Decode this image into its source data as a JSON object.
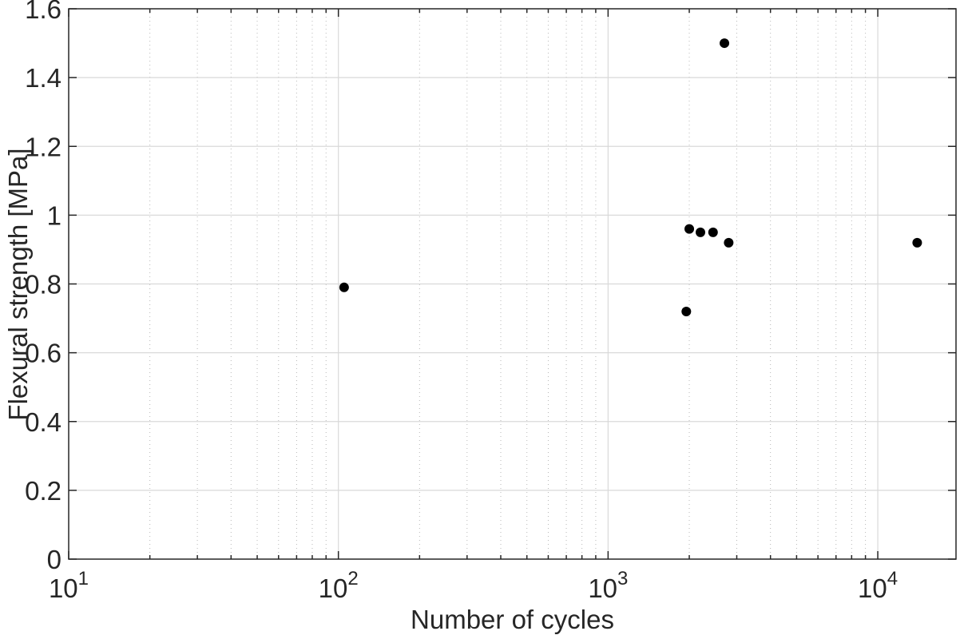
{
  "figure": {
    "background": "#ffffff",
    "axis_color": "#262626",
    "major_grid_color": "#d9d9d9",
    "minor_grid_color": "#b8b8b8",
    "marker_color": "#000000"
  },
  "chart_data": {
    "type": "scatter",
    "title": "",
    "xlabel": "Number of cycles",
    "ylabel": "Flexural strength [MPa]",
    "x_scale": "log",
    "y_scale": "linear",
    "xlim": [
      10,
      19500
    ],
    "ylim": [
      0,
      1.6
    ],
    "grid": true,
    "minor_grid": true,
    "legend": null,
    "x_major_ticks": [
      10,
      100,
      1000,
      10000
    ],
    "x_tick_labels": [
      {
        "mantissa": "10",
        "exponent": "1"
      },
      {
        "mantissa": "10",
        "exponent": "2"
      },
      {
        "mantissa": "10",
        "exponent": "3"
      },
      {
        "mantissa": "10",
        "exponent": "4"
      }
    ],
    "y_ticks": [
      0,
      0.2,
      0.4,
      0.6,
      0.8,
      1.0,
      1.2,
      1.4,
      1.6
    ],
    "y_tick_labels": [
      "0",
      "0.2",
      "0.4",
      "0.6",
      "0.8",
      "1",
      "1.2",
      "1.4",
      "1.6"
    ],
    "points": [
      {
        "x": 105,
        "y": 0.79
      },
      {
        "x": 1950,
        "y": 0.72
      },
      {
        "x": 2000,
        "y": 0.96
      },
      {
        "x": 2200,
        "y": 0.95
      },
      {
        "x": 2450,
        "y": 0.95
      },
      {
        "x": 2700,
        "y": 1.5
      },
      {
        "x": 2800,
        "y": 0.92
      },
      {
        "x": 14000,
        "y": 0.92
      }
    ]
  }
}
